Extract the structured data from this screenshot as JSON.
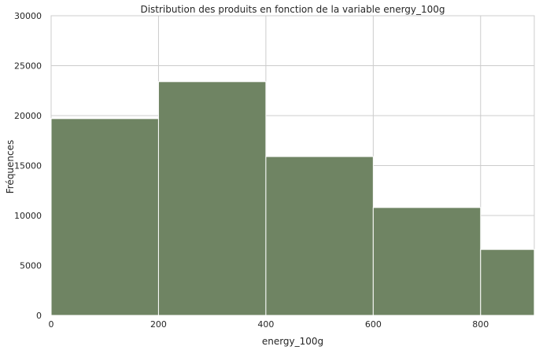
{
  "chart_data": {
    "type": "bar",
    "title": "Distribution des produits en fonction de la variable energy_100g",
    "xlabel": "energy_100g",
    "ylabel": "Fréquences",
    "xlim": [
      0,
      900
    ],
    "ylim": [
      0,
      30000
    ],
    "x_ticks": [
      0,
      200,
      400,
      600,
      800
    ],
    "y_ticks": [
      0,
      5000,
      10000,
      15000,
      20000,
      25000,
      30000
    ],
    "bins": [
      {
        "start": 0,
        "end": 200,
        "value": 19700
      },
      {
        "start": 200,
        "end": 400,
        "value": 23400
      },
      {
        "start": 400,
        "end": 600,
        "value": 15900
      },
      {
        "start": 600,
        "end": 800,
        "value": 10800
      },
      {
        "start": 800,
        "end": 900,
        "value": 6600
      }
    ],
    "grid": true,
    "bar_color": "#6f8463",
    "grid_color": "#cccccc",
    "plot_background": "#ffffff"
  }
}
